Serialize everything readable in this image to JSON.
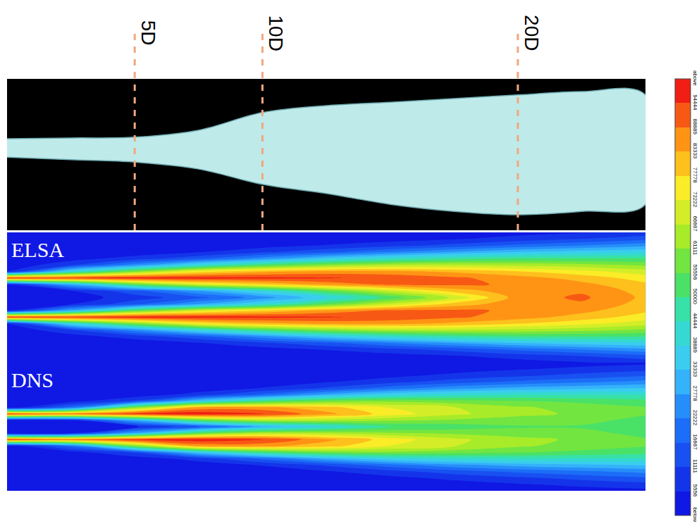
{
  "chart_data": [
    {
      "type": "isosurface",
      "xlim": [
        0,
        25
      ],
      "ylim": [
        -2.92,
        2.92
      ],
      "tick_labels": false,
      "color": "#bfeaea",
      "x": [
        0,
        2.5,
        5,
        7.5,
        10,
        12.5,
        15,
        17.5,
        20,
        22.5,
        25
      ],
      "upper": [
        0.61,
        0.64,
        0.67,
        0.94,
        1.62,
        1.89,
        2.02,
        2.16,
        2.3,
        2.43,
        2.3
      ],
      "lower": [
        -0.1,
        -0.2,
        -0.29,
        -0.56,
        -1.15,
        -1.5,
        -1.92,
        -2.19,
        -2.32,
        -2.19,
        -1.92
      ],
      "stations": [
        {
          "x": 5,
          "label": "5D"
        },
        {
          "x": 10,
          "label": "10D"
        },
        {
          "x": 20,
          "label": "20D"
        }
      ]
    },
    {
      "type": "contour",
      "title": "ELSA",
      "xlim": [
        0,
        25
      ],
      "ylim": [
        -2.5,
        2.5
      ],
      "tick_labels": false,
      "x": [
        0,
        2.5,
        5,
        7.5,
        10,
        12.5,
        15,
        17.5,
        20,
        22.5,
        25
      ],
      "y": [
        -2.5,
        -2.25,
        -2,
        -1.75,
        -1.5,
        -1.25,
        -1,
        -0.75,
        -0.5,
        -0.25,
        0,
        0.25,
        0.5,
        0.75,
        1,
        1.25,
        1.5,
        1.75,
        2,
        2.25,
        2.5
      ],
      "z": [
        [
          0,
          0,
          0,
          0,
          0,
          0,
          0,
          1000,
          3000,
          5000,
          7000
        ],
        [
          0,
          0,
          0,
          0,
          0,
          1000,
          3000,
          5000,
          8000,
          11000,
          15000
        ],
        [
          0,
          0,
          0,
          1000,
          3000,
          6000,
          9000,
          13000,
          18000,
          22000,
          26000
        ],
        [
          0,
          0,
          2000,
          5000,
          10000,
          15000,
          22000,
          28000,
          33000,
          36000,
          38000
        ],
        [
          0,
          3000,
          8000,
          15000,
          25000,
          35000,
          42000,
          47000,
          50000,
          50000,
          50000
        ],
        [
          1000,
          10000,
          25000,
          40000,
          52000,
          60000,
          65000,
          66000,
          65000,
          63000,
          60000
        ],
        [
          5000,
          40000,
          60000,
          75000,
          82000,
          85000,
          85000,
          82000,
          78000,
          74000,
          69000
        ],
        [
          95000,
          95000,
          97000,
          97000,
          96000,
          95000,
          93000,
          90000,
          86000,
          81000,
          75000
        ],
        [
          5000,
          30000,
          55000,
          70000,
          78000,
          85000,
          90000,
          90000,
          88000,
          85000,
          79000
        ],
        [
          2000,
          5000,
          15000,
          28000,
          40000,
          55000,
          68000,
          80000,
          87000,
          88000,
          81000
        ],
        [
          2000,
          3000,
          8000,
          15000,
          25000,
          38000,
          52000,
          68000,
          86000,
          90000,
          82000
        ],
        [
          2000,
          5000,
          15000,
          28000,
          40000,
          55000,
          68000,
          80000,
          87000,
          88000,
          81000
        ],
        [
          5000,
          30000,
          55000,
          70000,
          78000,
          85000,
          90000,
          90000,
          88000,
          85000,
          79000
        ],
        [
          95000,
          95000,
          97000,
          97000,
          96000,
          95000,
          93000,
          90000,
          86000,
          81000,
          75000
        ],
        [
          5000,
          40000,
          60000,
          75000,
          82000,
          85000,
          85000,
          82000,
          78000,
          74000,
          69000
        ],
        [
          1000,
          10000,
          25000,
          40000,
          52000,
          60000,
          65000,
          66000,
          65000,
          63000,
          60000
        ],
        [
          0,
          3000,
          8000,
          15000,
          25000,
          35000,
          42000,
          47000,
          50000,
          50000,
          50000
        ],
        [
          0,
          0,
          2000,
          5000,
          10000,
          15000,
          22000,
          28000,
          33000,
          36000,
          38000
        ],
        [
          0,
          0,
          0,
          1000,
          3000,
          6000,
          9000,
          13000,
          18000,
          22000,
          26000
        ],
        [
          0,
          0,
          0,
          0,
          0,
          1000,
          3000,
          5000,
          8000,
          11000,
          15000
        ],
        [
          0,
          0,
          0,
          0,
          0,
          0,
          0,
          1000,
          3000,
          5000,
          7000
        ]
      ],
      "zlim": [
        0,
        100000
      ],
      "zticks": [
        {
          "value": 0,
          "label": "below"
        },
        5556,
        11111,
        16667,
        22222,
        27778,
        33333,
        38889,
        44444,
        50000,
        55556,
        61111,
        66667,
        72222,
        77778,
        83333,
        88889,
        94444,
        {
          "value": 100000,
          "label": "above"
        }
      ]
    },
    {
      "type": "contour",
      "title": "DNS",
      "xlim": [
        0,
        25
      ],
      "ylim": [
        -2.5,
        2.5
      ],
      "tick_labels": false,
      "x": [
        0,
        2.5,
        5,
        7.5,
        10,
        12.5,
        15,
        17.5,
        20,
        22.5,
        25
      ],
      "y": [
        -2.5,
        -2.25,
        -2,
        -1.75,
        -1.5,
        -1.25,
        -1,
        -0.75,
        -0.5,
        -0.25,
        0,
        0.25,
        0.5,
        0.75,
        1,
        1.25,
        1.5,
        1.75,
        2,
        2.25,
        2.5
      ],
      "z": [
        [
          0,
          0,
          0,
          0,
          0,
          0,
          0,
          1000,
          2000,
          3000,
          4000
        ],
        [
          0,
          0,
          0,
          0,
          0,
          0,
          1000,
          3000,
          5000,
          7000,
          9000
        ],
        [
          0,
          0,
          0,
          0,
          0,
          2000,
          4000,
          7000,
          10000,
          13000,
          16000
        ],
        [
          0,
          0,
          0,
          0,
          2000,
          5000,
          9000,
          14000,
          18000,
          21000,
          24000
        ],
        [
          0,
          0,
          0,
          2000,
          6000,
          12000,
          20000,
          26000,
          30000,
          32000,
          34000
        ],
        [
          0,
          0,
          2000,
          8000,
          18000,
          30000,
          38000,
          42000,
          44000,
          44000,
          44000
        ],
        [
          0,
          3000,
          12000,
          35000,
          50000,
          58000,
          60000,
          58000,
          56000,
          54000,
          52000
        ],
        [
          2000,
          20000,
          60000,
          85000,
          85000,
          80000,
          72000,
          67000,
          62000,
          59000,
          56000
        ],
        [
          95000,
          90000,
          96000,
          98000,
          95000,
          85000,
          75000,
          68000,
          63000,
          60000,
          56000
        ],
        [
          1000,
          5000,
          30000,
          55000,
          65000,
          65000,
          62000,
          60000,
          58000,
          57000,
          54000
        ],
        [
          1000,
          2000,
          5000,
          15000,
          30000,
          40000,
          50000,
          52000,
          55000,
          55000,
          52000
        ],
        [
          1000,
          5000,
          30000,
          55000,
          65000,
          65000,
          62000,
          60000,
          58000,
          57000,
          54000
        ],
        [
          95000,
          90000,
          96000,
          98000,
          95000,
          85000,
          75000,
          68000,
          63000,
          60000,
          56000
        ],
        [
          2000,
          20000,
          60000,
          85000,
          85000,
          80000,
          72000,
          67000,
          62000,
          59000,
          56000
        ],
        [
          0,
          3000,
          12000,
          35000,
          50000,
          58000,
          60000,
          58000,
          56000,
          54000,
          52000
        ],
        [
          0,
          0,
          2000,
          8000,
          18000,
          30000,
          38000,
          42000,
          44000,
          44000,
          44000
        ],
        [
          0,
          0,
          0,
          2000,
          6000,
          12000,
          20000,
          26000,
          30000,
          32000,
          34000
        ],
        [
          0,
          0,
          0,
          0,
          2000,
          5000,
          9000,
          14000,
          18000,
          21000,
          24000
        ],
        [
          0,
          0,
          0,
          0,
          0,
          2000,
          4000,
          7000,
          10000,
          13000,
          16000
        ],
        [
          0,
          0,
          0,
          0,
          0,
          0,
          1000,
          3000,
          5000,
          7000,
          9000
        ],
        [
          0,
          0,
          0,
          0,
          0,
          0,
          0,
          1000,
          2000,
          3000,
          4000
        ]
      ],
      "zlim": [
        0,
        100000
      ],
      "zticks": [
        {
          "value": 0,
          "label": "below"
        },
        5556,
        11111,
        16667,
        22222,
        27778,
        33333,
        38889,
        44444,
        50000,
        55556,
        61111,
        66667,
        72222,
        77778,
        83333,
        88889,
        94444,
        {
          "value": 100000,
          "label": "above"
        }
      ]
    }
  ]
}
